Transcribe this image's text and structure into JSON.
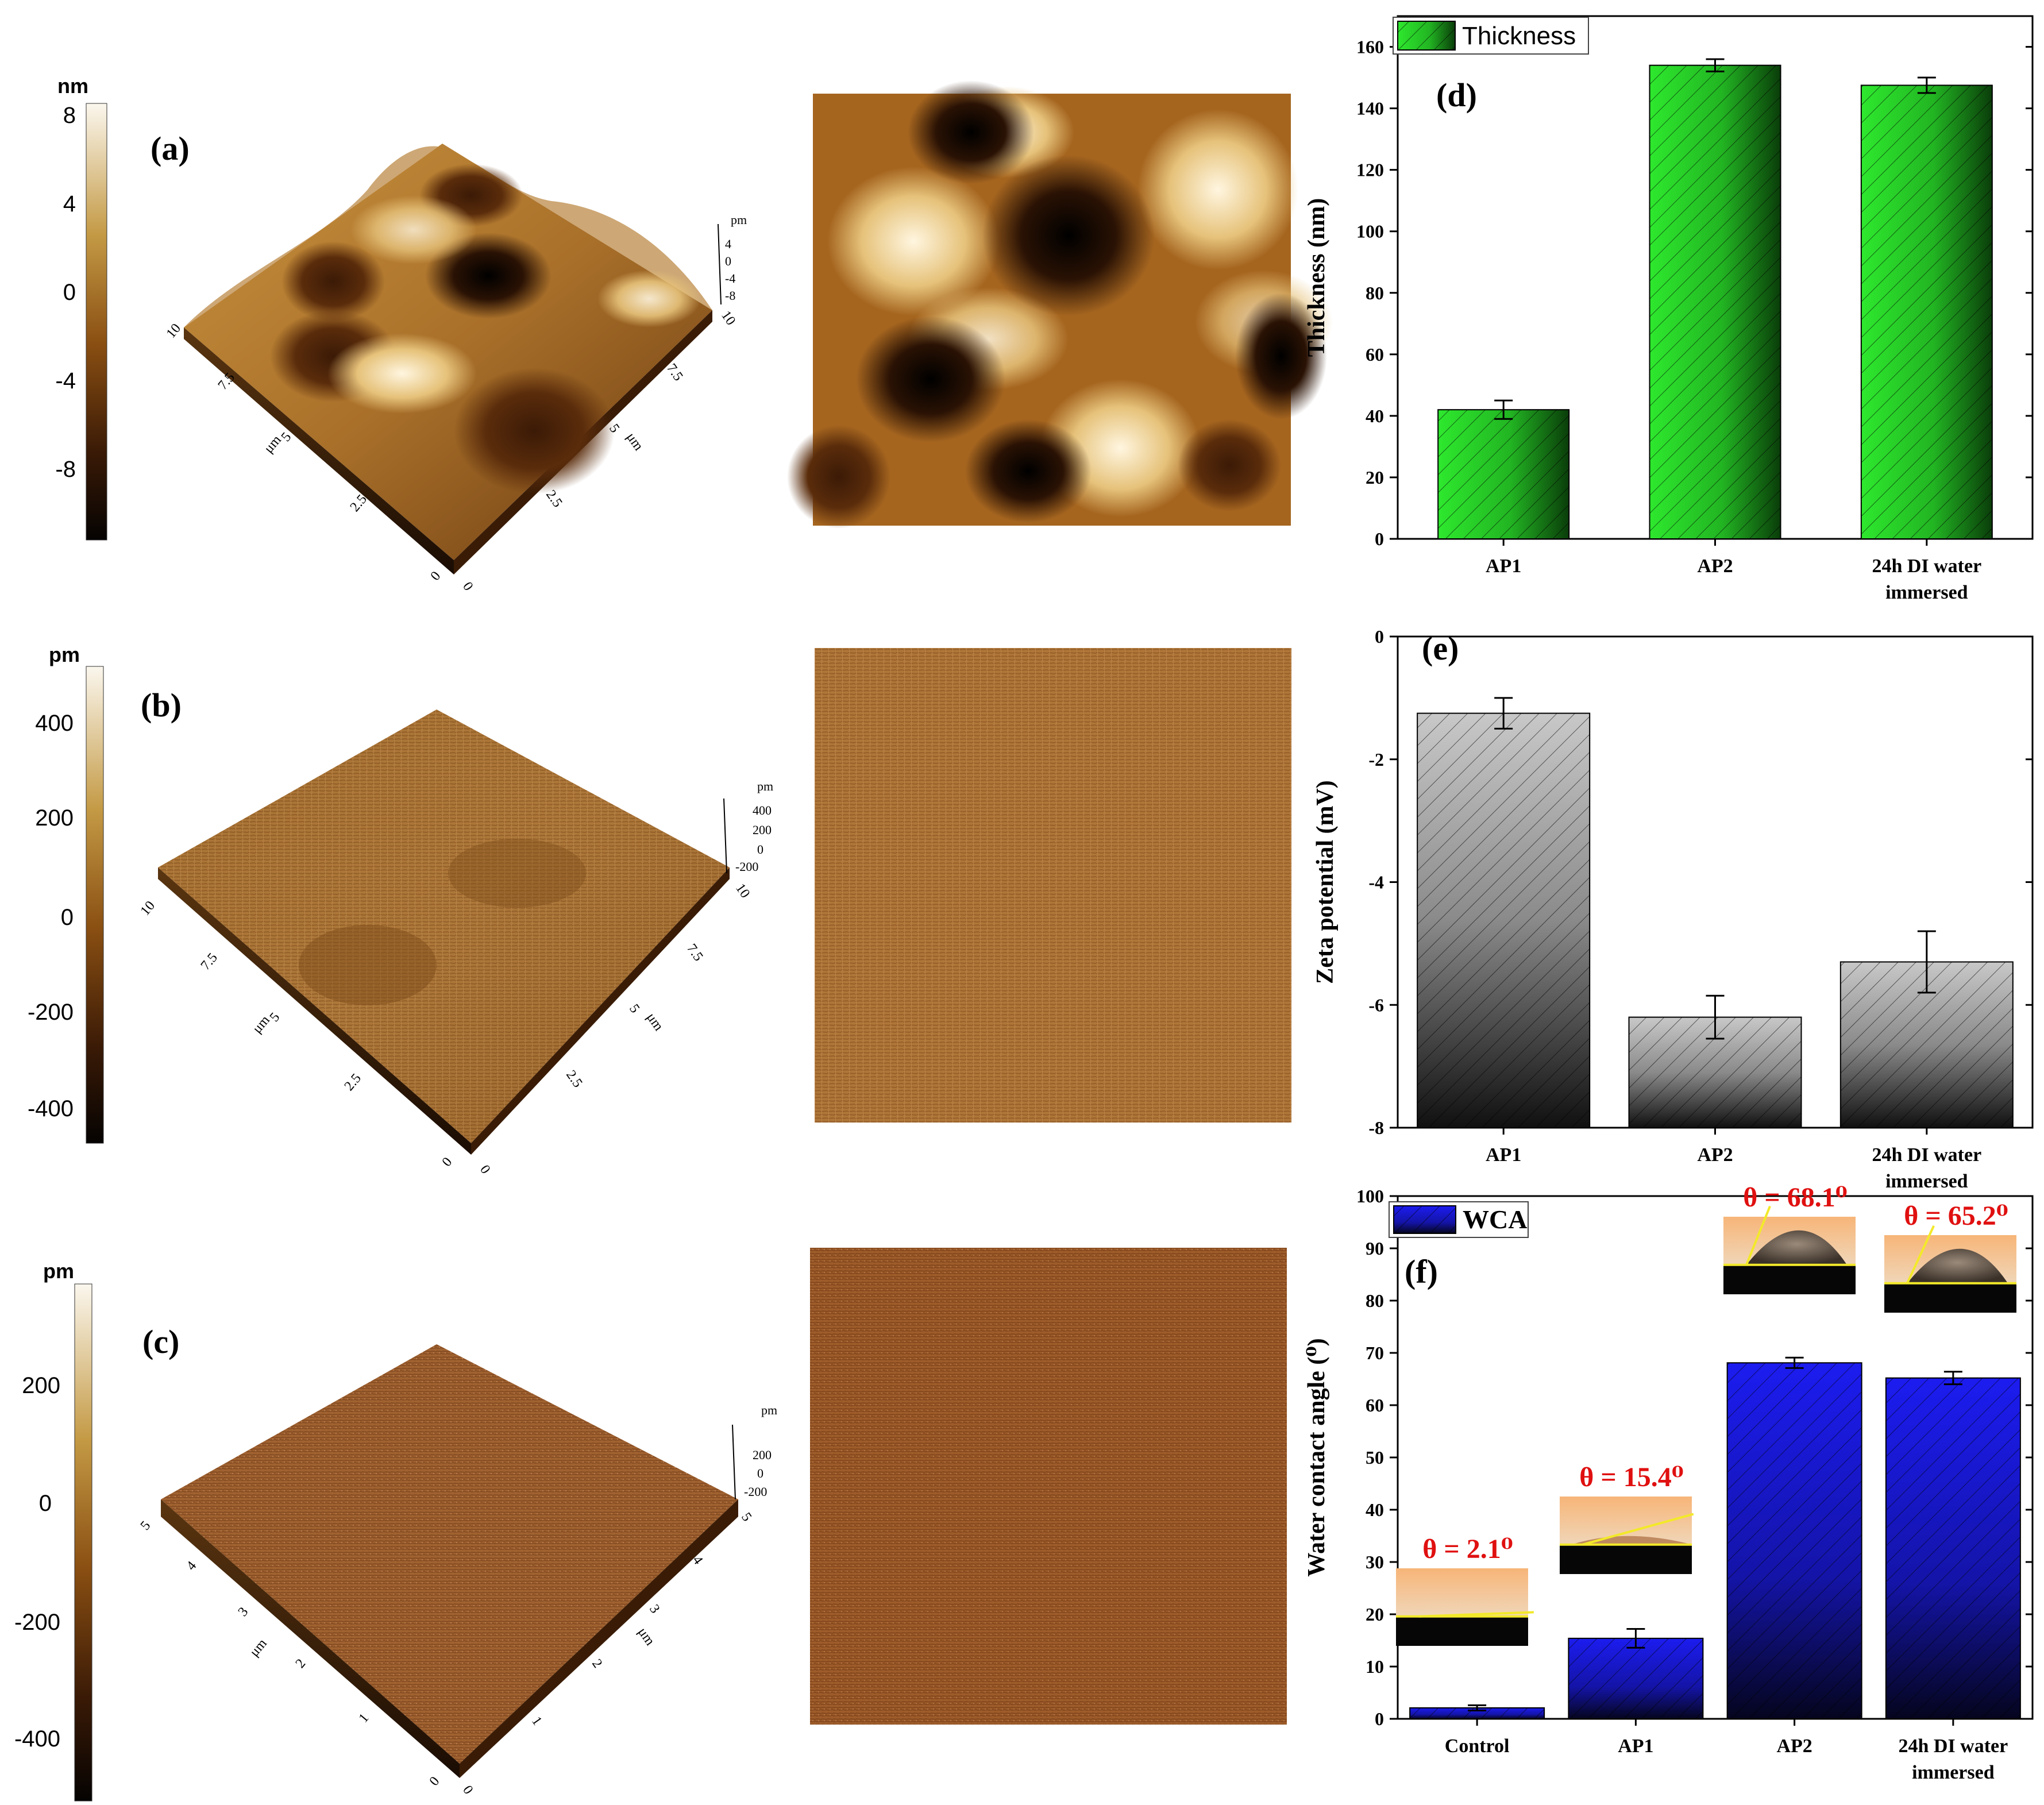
{
  "afm_panels": [
    {
      "label": "(a)",
      "colorbar": {
        "unit": "nm",
        "ticks": [
          "8",
          "4",
          "0",
          "-4",
          "-8"
        ]
      },
      "z_axis": {
        "unit": "pm",
        "ticks": [
          "4",
          "0",
          "-4",
          "-8"
        ]
      },
      "left_axis": {
        "unit": "μm",
        "ticks": [
          "0",
          "2.5",
          "5",
          "7.5",
          "10"
        ]
      },
      "right_axis": {
        "unit": "μm",
        "ticks": [
          "0",
          "2.5",
          "5",
          "7.5",
          "10"
        ]
      }
    },
    {
      "label": "(b)",
      "colorbar": {
        "unit": "pm",
        "ticks": [
          "400",
          "200",
          "0",
          "-200",
          "-400"
        ]
      },
      "z_axis": {
        "unit": "pm",
        "ticks": [
          "400",
          "200",
          "0",
          "-200"
        ]
      },
      "left_axis": {
        "unit": "μm",
        "ticks": [
          "0",
          "2.5",
          "5",
          "7.5",
          "10"
        ]
      },
      "right_axis": {
        "unit": "μm",
        "ticks": [
          "0",
          "2.5",
          "5",
          "7.5",
          "10"
        ]
      }
    },
    {
      "label": "(c)",
      "colorbar": {
        "unit": "pm",
        "ticks": [
          "200",
          "0",
          "-200",
          "-400"
        ]
      },
      "z_axis": {
        "unit": "pm",
        "ticks": [
          "200",
          "0",
          "-200"
        ]
      },
      "left_axis": {
        "unit": "μm",
        "ticks": [
          "0",
          "1",
          "2",
          "3",
          "4",
          "5"
        ]
      },
      "right_axis": {
        "unit": "μm",
        "ticks": [
          "0",
          "1",
          "2",
          "3",
          "4",
          "5"
        ]
      }
    }
  ],
  "chart_data": [
    {
      "type": "bar",
      "panel_label": "(d)",
      "categories": [
        "AP1",
        "AP2",
        "24h DI water immersed"
      ],
      "series": [
        {
          "name": "Thickness",
          "values": [
            42,
            154,
            147.5
          ],
          "errors": [
            3,
            2,
            2.5
          ]
        }
      ],
      "ylabel": "Thickness (nm)",
      "xlabel": "",
      "ylim": [
        0,
        170
      ],
      "yticks": [
        0,
        20,
        40,
        60,
        80,
        100,
        120,
        140,
        160
      ],
      "legend": "top-left",
      "color": "#27c827"
    },
    {
      "type": "bar",
      "panel_label": "(e)",
      "categories": [
        "AP1",
        "AP2",
        "24h DI water immersed"
      ],
      "series": [
        {
          "values": [
            -1.25,
            -6.2,
            -5.3
          ],
          "errors": [
            0.25,
            0.35,
            0.5
          ]
        }
      ],
      "ylabel": "Zeta potential (mV)",
      "xlabel": "",
      "ylim": [
        -8,
        0
      ],
      "yticks": [
        0,
        -2,
        -4,
        -6,
        -8
      ],
      "color": "#b5b5b5"
    },
    {
      "type": "bar",
      "panel_label": "(f)",
      "categories": [
        "Control",
        "AP1",
        "AP2",
        "24h DI water immersed"
      ],
      "series": [
        {
          "name": "WCA",
          "values": [
            2.1,
            15.4,
            68.1,
            65.2
          ],
          "errors": [
            0.5,
            1.8,
            1,
            1.2
          ]
        }
      ],
      "ylabel": "Water contact angle (⁰)",
      "xlabel": "",
      "ylim": [
        0,
        100
      ],
      "yticks": [
        0,
        10,
        20,
        30,
        40,
        50,
        60,
        70,
        80,
        90,
        100
      ],
      "legend": "top-left",
      "color": "#1a1ae0",
      "annotations": [
        "θ = 2.1⁰",
        "θ = 15.4⁰",
        "θ = 68.1⁰",
        "θ = 65.2⁰"
      ]
    }
  ]
}
